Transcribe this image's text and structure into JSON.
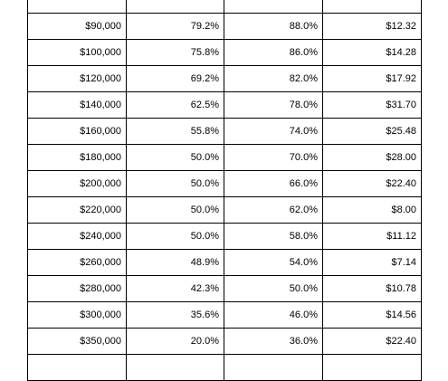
{
  "table": {
    "rows": [
      [
        "",
        "",
        "",
        ""
      ],
      [
        "$90,000",
        "79.2%",
        "88.0%",
        "$12.32"
      ],
      [
        "$100,000",
        "75.8%",
        "86.0%",
        "$14.28"
      ],
      [
        "$120,000",
        "69.2%",
        "82.0%",
        "$17.92"
      ],
      [
        "$140,000",
        "62.5%",
        "78.0%",
        "$31.70"
      ],
      [
        "$160,000",
        "55.8%",
        "74.0%",
        "$25.48"
      ],
      [
        "$180,000",
        "50.0%",
        "70.0%",
        "$28.00"
      ],
      [
        "$200,000",
        "50.0%",
        "66.0%",
        "$22.40"
      ],
      [
        "$220,000",
        "50.0%",
        "62.0%",
        "$8.00"
      ],
      [
        "$240,000",
        "50.0%",
        "58.0%",
        "$11.12"
      ],
      [
        "$260,000",
        "48.9%",
        "54.0%",
        "$7.14"
      ],
      [
        "$280,000",
        "42.3%",
        "50.0%",
        "$10.78"
      ],
      [
        "$300,000",
        "35.6%",
        "46.0%",
        "$14.56"
      ],
      [
        "$350,000",
        "20.0%",
        "36.0%",
        "$22.40"
      ],
      [
        "",
        "",
        "",
        ""
      ]
    ]
  }
}
